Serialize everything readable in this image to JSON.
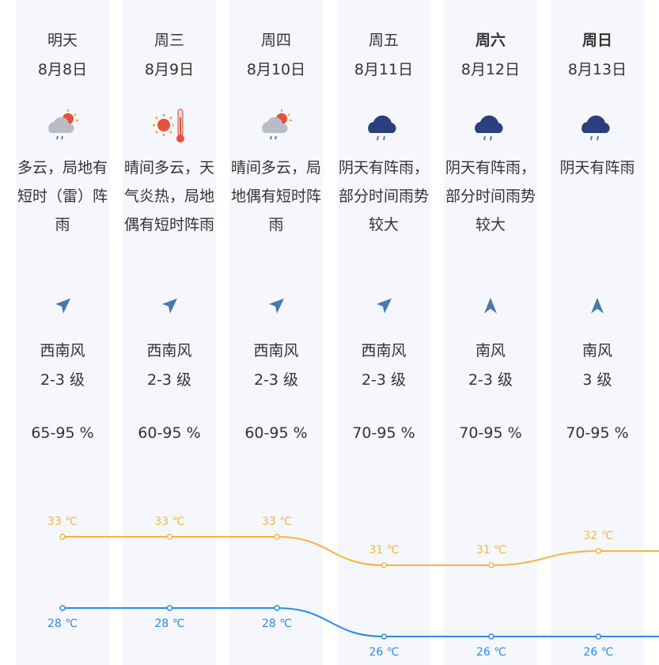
{
  "days": [
    {
      "day": "明天",
      "date": "8月8日",
      "weather": "多云，局地有短时（雷）阵雨",
      "wind_dir": "西南风",
      "wind_level": "2-3 级",
      "humidity": "65-95 %"
    },
    {
      "day": "周三",
      "date": "8月9日",
      "weather": "晴间多云，天气炎热，局地偶有短时阵雨",
      "wind_dir": "西南风",
      "wind_level": "2-3 级",
      "humidity": "60-95 %"
    },
    {
      "day": "周四",
      "date": "8月10日",
      "weather": "晴间多云，局地偶有短时阵雨",
      "wind_dir": "西南风",
      "wind_level": "2-3 级",
      "humidity": "60-95 %"
    },
    {
      "day": "周五",
      "date": "8月11日",
      "weather": "阴天有阵雨，部分时间雨势较大",
      "wind_dir": "西南风",
      "wind_level": "2-3 级",
      "humidity": "70-95 %"
    },
    {
      "day": "周六",
      "date": "8月12日",
      "weather": "阴天有阵雨，部分时间雨势较大",
      "wind_dir": "南风",
      "wind_level": "2-3 级",
      "humidity": "70-95 %"
    },
    {
      "day": "周日",
      "date": "8月13日",
      "weather": "阴天有阵雨",
      "wind_dir": "南风",
      "wind_level": "3 级",
      "humidity": "70-95 %"
    }
  ],
  "chart_data": {
    "type": "line",
    "series": [
      {
        "color": "#f7b53b",
        "values": [
          33,
          33,
          33,
          31,
          31,
          32
        ],
        "value_labels": [
          "33 ℃",
          "33 ℃",
          "33 ℃",
          "31 ℃",
          "31 ℃",
          "32 ℃"
        ]
      },
      {
        "color": "#2b8be8",
        "values": [
          28,
          28,
          28,
          26,
          26,
          26
        ],
        "value_labels": [
          "28 ℃",
          "28 ℃",
          "28 ℃",
          "26 ℃",
          "26 ℃",
          "26 ℃"
        ]
      }
    ]
  }
}
